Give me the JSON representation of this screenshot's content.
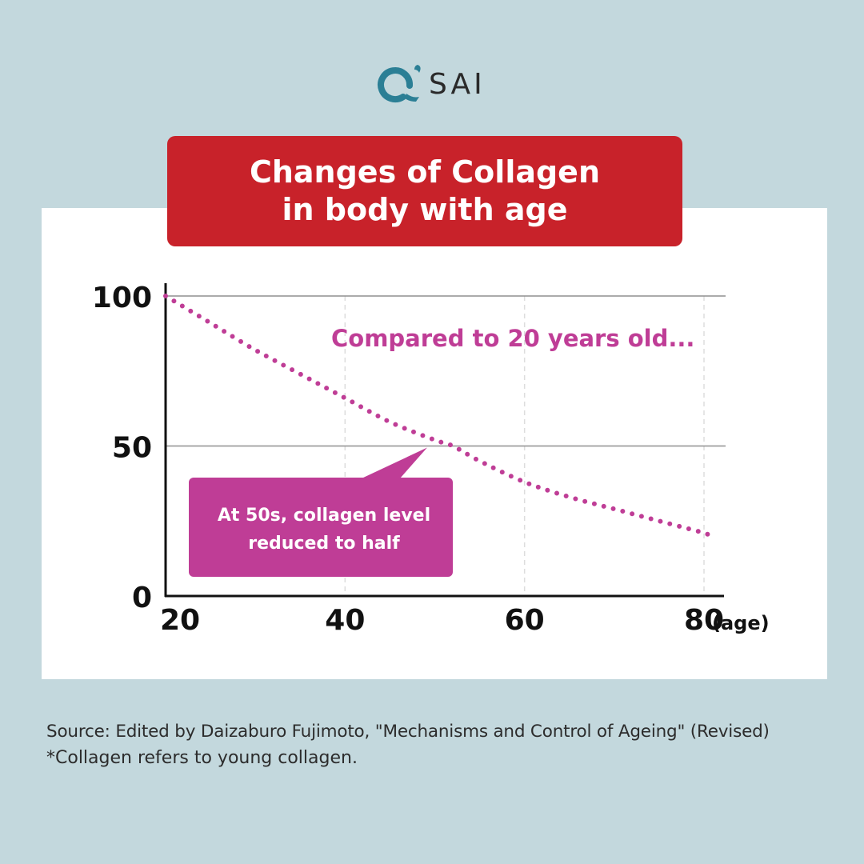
{
  "brand": {
    "logo_text": "SAI",
    "logo_glyph": "Q'"
  },
  "title": {
    "line1": "Changes of Collagen",
    "line2": "in body with age"
  },
  "chart_data": {
    "type": "line",
    "title": "Changes of Collagen in body with age",
    "xlabel": "(age)",
    "ylabel": "",
    "xlim": [
      20,
      82
    ],
    "ylim": [
      0,
      100
    ],
    "x_ticks": [
      "20",
      "40",
      "60",
      "80"
    ],
    "y_ticks": [
      "0",
      "50",
      "100"
    ],
    "grid": {
      "horizontal": [
        50,
        100
      ],
      "vertical_dashed": [
        40,
        60,
        80
      ]
    },
    "series": [
      {
        "name": "Collagen level",
        "style": "dotted",
        "x": [
          20,
          25,
          30,
          35,
          40,
          45,
          50,
          52,
          55,
          60,
          65,
          70,
          75,
          80,
          81
        ],
        "y": [
          100,
          91,
          82,
          74,
          66,
          58,
          52,
          50,
          45,
          38,
          33,
          29,
          25,
          21,
          19.5
        ]
      }
    ],
    "annotations": [
      {
        "text": "Compared to 20 years old..."
      },
      {
        "text_line1": "At 50s, collagen level",
        "text_line2": "reduced to half",
        "points_to_x": 52,
        "points_to_y": 50
      }
    ]
  },
  "colors": {
    "background": "#c3d8dd",
    "title_red": "#c8222a",
    "series_magenta": "#bf3d96",
    "logo_teal": "#2b7f95"
  },
  "footer": {
    "source": "Source: Edited by Daizaburo Fujimoto, \"Mechanisms and Control of Ageing\" (Revised)",
    "note": "*Collagen refers to young collagen."
  }
}
